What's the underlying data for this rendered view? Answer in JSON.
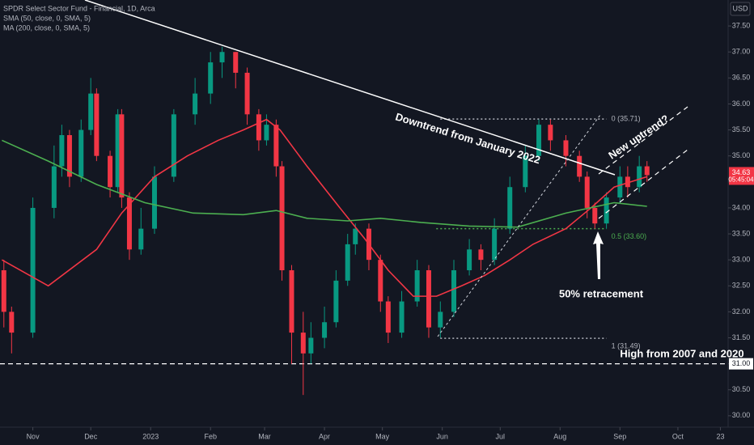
{
  "chart_data": {
    "type": "candlestick",
    "title": "SPDR Select Sector Fund - Financial, 1D, Arca",
    "currency": "USD",
    "countdown": "05:45:04",
    "up_color": "#089981",
    "down_color": "#f23645",
    "xlim": [
      14,
      391
    ],
    "xticks": [
      {
        "value": 31,
        "label": "Nov"
      },
      {
        "value": 61,
        "label": "Dec"
      },
      {
        "value": 92,
        "label": "2023"
      },
      {
        "value": 123,
        "label": "Feb"
      },
      {
        "value": 151,
        "label": "Mar"
      },
      {
        "value": 182,
        "label": "Apr"
      },
      {
        "value": 212,
        "label": "May"
      },
      {
        "value": 243,
        "label": "Jun"
      },
      {
        "value": 273,
        "label": "Jul"
      },
      {
        "value": 304,
        "label": "Aug"
      },
      {
        "value": 335,
        "label": "Sep"
      },
      {
        "value": 365,
        "label": "Oct"
      },
      {
        "value": 387,
        "label": "23"
      }
    ],
    "ylim": [
      29.78,
      38.0
    ],
    "yticks": [
      {
        "value": 30,
        "label": "30.00"
      },
      {
        "value": 30.5,
        "label": "30.50"
      },
      {
        "value": 31,
        "label": "31.00"
      },
      {
        "value": 31.5,
        "label": "31.50"
      },
      {
        "value": 32,
        "label": "32.00"
      },
      {
        "value": 32.5,
        "label": "32.50"
      },
      {
        "value": 33,
        "label": "33.00"
      },
      {
        "value": 33.5,
        "label": "33.50"
      },
      {
        "value": 34,
        "label": "34.00"
      },
      {
        "value": 34.5,
        "label": "34.50"
      },
      {
        "value": 35,
        "label": "35.00"
      },
      {
        "value": 35.5,
        "label": "35.50"
      },
      {
        "value": 36,
        "label": "36.00"
      },
      {
        "value": 36.5,
        "label": "36.50"
      },
      {
        "value": 37,
        "label": "37.00"
      },
      {
        "value": 37.5,
        "label": "37.50"
      }
    ],
    "candles": {
      "x": [
        16,
        20,
        31,
        42,
        46,
        50,
        56,
        61,
        64,
        71,
        75,
        77,
        81,
        87,
        94,
        104,
        115,
        123,
        129,
        136,
        142,
        148,
        152,
        157,
        160,
        165,
        171,
        175,
        182,
        188,
        194,
        198,
        205,
        211,
        215,
        222,
        230,
        236,
        242,
        249,
        257,
        263,
        270,
        278,
        286,
        293,
        299,
        307,
        314,
        318,
        322,
        328,
        335,
        339,
        345,
        349
      ],
      "open": [
        32.8,
        32.0,
        31.6,
        34.0,
        34.8,
        35.4,
        34.6,
        35.5,
        36.2,
        35.0,
        34.4,
        35.8,
        34.2,
        33.2,
        33.6,
        34.6,
        35.8,
        36.2,
        36.8,
        37.0,
        36.6,
        35.8,
        35.3,
        35.6,
        34.8,
        32.8,
        31.6,
        31.2,
        31.5,
        31.8,
        32.6,
        33.3,
        33.6,
        33.0,
        32.2,
        31.6,
        32.2,
        32.8,
        31.7,
        32.0,
        32.8,
        33.2,
        33.0,
        33.6,
        34.4,
        35.0,
        35.6,
        35.3,
        35.0,
        34.6,
        34.0,
        33.7,
        34.2,
        34.6,
        34.4,
        34.8
      ],
      "high": [
        33.0,
        32.1,
        34.2,
        35.2,
        35.6,
        35.5,
        35.7,
        36.5,
        36.3,
        35.1,
        35.9,
        35.9,
        34.3,
        34.0,
        34.8,
        35.9,
        36.5,
        37.0,
        37.1,
        37.0,
        36.7,
        35.9,
        35.8,
        35.7,
        34.9,
        32.9,
        32.0,
        31.8,
        32.1,
        32.8,
        33.5,
        33.7,
        33.7,
        33.1,
        32.3,
        32.4,
        33.0,
        32.9,
        32.2,
        33.0,
        33.4,
        33.3,
        33.8,
        34.6,
        35.2,
        35.7,
        35.7,
        35.4,
        35.1,
        34.7,
        34.1,
        34.3,
        34.8,
        34.8,
        35.0,
        34.9
      ],
      "low": [
        31.7,
        31.2,
        31.5,
        33.8,
        34.6,
        34.4,
        34.5,
        35.4,
        34.9,
        34.2,
        34.3,
        34.0,
        33.0,
        33.1,
        33.5,
        34.5,
        35.6,
        36.0,
        36.5,
        36.3,
        35.6,
        35.1,
        35.2,
        34.6,
        32.6,
        31.0,
        30.4,
        31.0,
        31.3,
        31.7,
        32.5,
        33.1,
        32.8,
        32.0,
        31.4,
        31.5,
        32.1,
        31.5,
        31.5,
        31.9,
        32.7,
        32.8,
        32.9,
        33.5,
        34.3,
        34.9,
        35.1,
        34.8,
        34.5,
        33.8,
        33.6,
        33.6,
        34.1,
        34.2,
        34.3,
        34.5
      ],
      "close": [
        32.0,
        31.6,
        34.0,
        34.8,
        35.4,
        34.6,
        35.5,
        36.2,
        35.0,
        34.4,
        35.8,
        34.2,
        33.2,
        33.6,
        34.6,
        35.8,
        36.2,
        36.8,
        37.0,
        36.6,
        35.8,
        35.3,
        35.6,
        34.8,
        32.8,
        31.6,
        31.2,
        31.5,
        31.8,
        32.6,
        33.3,
        33.6,
        33.0,
        32.2,
        31.6,
        32.2,
        32.8,
        31.7,
        32.0,
        32.8,
        33.2,
        33.0,
        33.6,
        34.4,
        35.0,
        35.6,
        35.3,
        35.0,
        34.6,
        34.0,
        33.7,
        34.2,
        34.6,
        34.4,
        34.8,
        34.63
      ]
    },
    "series": [
      {
        "name": "SMA (50, close, 0, SMA, 5)",
        "color": "#f23645",
        "x": [
          15,
          39,
          64,
          77,
          94,
          111,
          127,
          140,
          152,
          159,
          173,
          190,
          203,
          215,
          228,
          240,
          253,
          265,
          278,
          290,
          307,
          320,
          332,
          349
        ],
        "values": [
          33.0,
          32.5,
          33.2,
          33.9,
          34.6,
          35.0,
          35.3,
          35.5,
          35.7,
          35.5,
          34.8,
          34.0,
          33.4,
          32.8,
          32.3,
          32.3,
          32.5,
          32.7,
          33.0,
          33.3,
          33.6,
          34.0,
          34.4,
          34.6
        ]
      },
      {
        "name": "MA (200, close, 0, SMA, 5)",
        "color": "#4caf50",
        "x": [
          15,
          39,
          64,
          89,
          114,
          140,
          157,
          173,
          194,
          211,
          232,
          257,
          282,
          307,
          332,
          349
        ],
        "values": [
          35.3,
          34.9,
          34.45,
          34.1,
          33.9,
          33.87,
          33.95,
          33.8,
          33.75,
          33.8,
          33.72,
          33.65,
          33.63,
          33.9,
          34.1,
          34.03
        ]
      }
    ],
    "fib_levels": [
      {
        "value": 35.71,
        "label": "0 (35.71)"
      },
      {
        "value": 33.6,
        "label": "0.5 (33.60)"
      },
      {
        "value": 31.49,
        "label": "1 (31.49)"
      }
    ],
    "fib_range": [
      242,
      328
    ],
    "hline": {
      "value": 31,
      "label": "31.00"
    },
    "annotations": [
      "Downtrend from January 2022",
      "New uptrend?",
      "50% retracement",
      "High from 2007 and 2020"
    ]
  }
}
